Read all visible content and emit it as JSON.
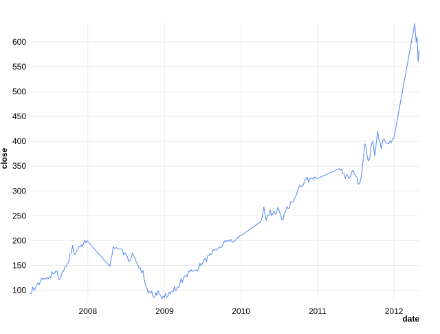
{
  "chart_data": {
    "type": "line",
    "title": "",
    "xlabel": "date",
    "ylabel": "close",
    "x_type": "date",
    "xlim": [
      "2007-04-01",
      "2012-05-01"
    ],
    "ylim": [
      80,
      640
    ],
    "x_ticks": [
      {
        "date": "2008-01-01",
        "label": "2008"
      },
      {
        "date": "2009-01-01",
        "label": "2009"
      },
      {
        "date": "2010-01-01",
        "label": "2010"
      },
      {
        "date": "2011-01-01",
        "label": "2011"
      },
      {
        "date": "2012-01-01",
        "label": "2012"
      }
    ],
    "y_ticks": [
      100,
      150,
      200,
      250,
      300,
      350,
      400,
      450,
      500,
      550,
      600
    ],
    "grid": true,
    "legend": "none",
    "series": [
      {
        "color": "#5b8ff0",
        "x": [
          "2007-04-01",
          "2007-05-01",
          "2007-06-01",
          "2007-07-01",
          "2007-08-01",
          "2007-08-20",
          "2007-09-01",
          "2007-10-01",
          "2007-10-20",
          "2007-11-01",
          "2007-11-15",
          "2007-12-01",
          "2007-12-28",
          "2008-04-15",
          "2008-05-01",
          "2008-06-01",
          "2008-07-01",
          "2008-07-20",
          "2008-08-01",
          "2008-09-01",
          "2008-09-20",
          "2008-10-01",
          "2008-10-15",
          "2008-11-01",
          "2008-11-15",
          "2008-12-01",
          "2008-12-15",
          "2008-12-31",
          "2009-03-05",
          "2009-04-01",
          "2009-05-01",
          "2009-06-01",
          "2009-07-01",
          "2009-08-01",
          "2009-09-01",
          "2009-10-01",
          "2009-10-20",
          "2009-11-01",
          "2009-12-01",
          "2009-12-31",
          "2010-04-05",
          "2010-04-20",
          "2010-05-01",
          "2010-05-20",
          "2010-06-01",
          "2010-07-01",
          "2010-07-15",
          "2010-08-01",
          "2010-09-01",
          "2010-09-20",
          "2010-10-01",
          "2010-10-20",
          "2010-11-01",
          "2010-12-01",
          "2010-12-31",
          "2011-04-15",
          "2011-05-01",
          "2011-06-01",
          "2011-06-20",
          "2011-07-01",
          "2011-07-20",
          "2011-08-01",
          "2011-08-15",
          "2011-09-01",
          "2011-09-20",
          "2011-10-01",
          "2011-10-15",
          "2011-11-01",
          "2011-11-15",
          "2011-12-01",
          "2011-12-31",
          "2012-04-09",
          "2012-04-16",
          "2012-04-20",
          "2012-04-25",
          "2012-04-30"
        ],
        "values": [
          93,
          110,
          122,
          127,
          139,
          122,
          138,
          156,
          190,
          172,
          182,
          192,
          200,
          148,
          188,
          183,
          172,
          160,
          175,
          145,
          140,
          112,
          95,
          98,
          85,
          99,
          88,
          85,
          107,
          125,
          137,
          141,
          155,
          170,
          183,
          188,
          198,
          200,
          200,
          210,
          238,
          268,
          240,
          262,
          253,
          262,
          242,
          258,
          278,
          290,
          305,
          310,
          322,
          325,
          325,
          345,
          335,
          325,
          342,
          330,
          315,
          340,
          395,
          360,
          400,
          370,
          420,
          385,
          405,
          395,
          405,
          637,
          600,
          610,
          560,
          583
        ]
      }
    ]
  }
}
